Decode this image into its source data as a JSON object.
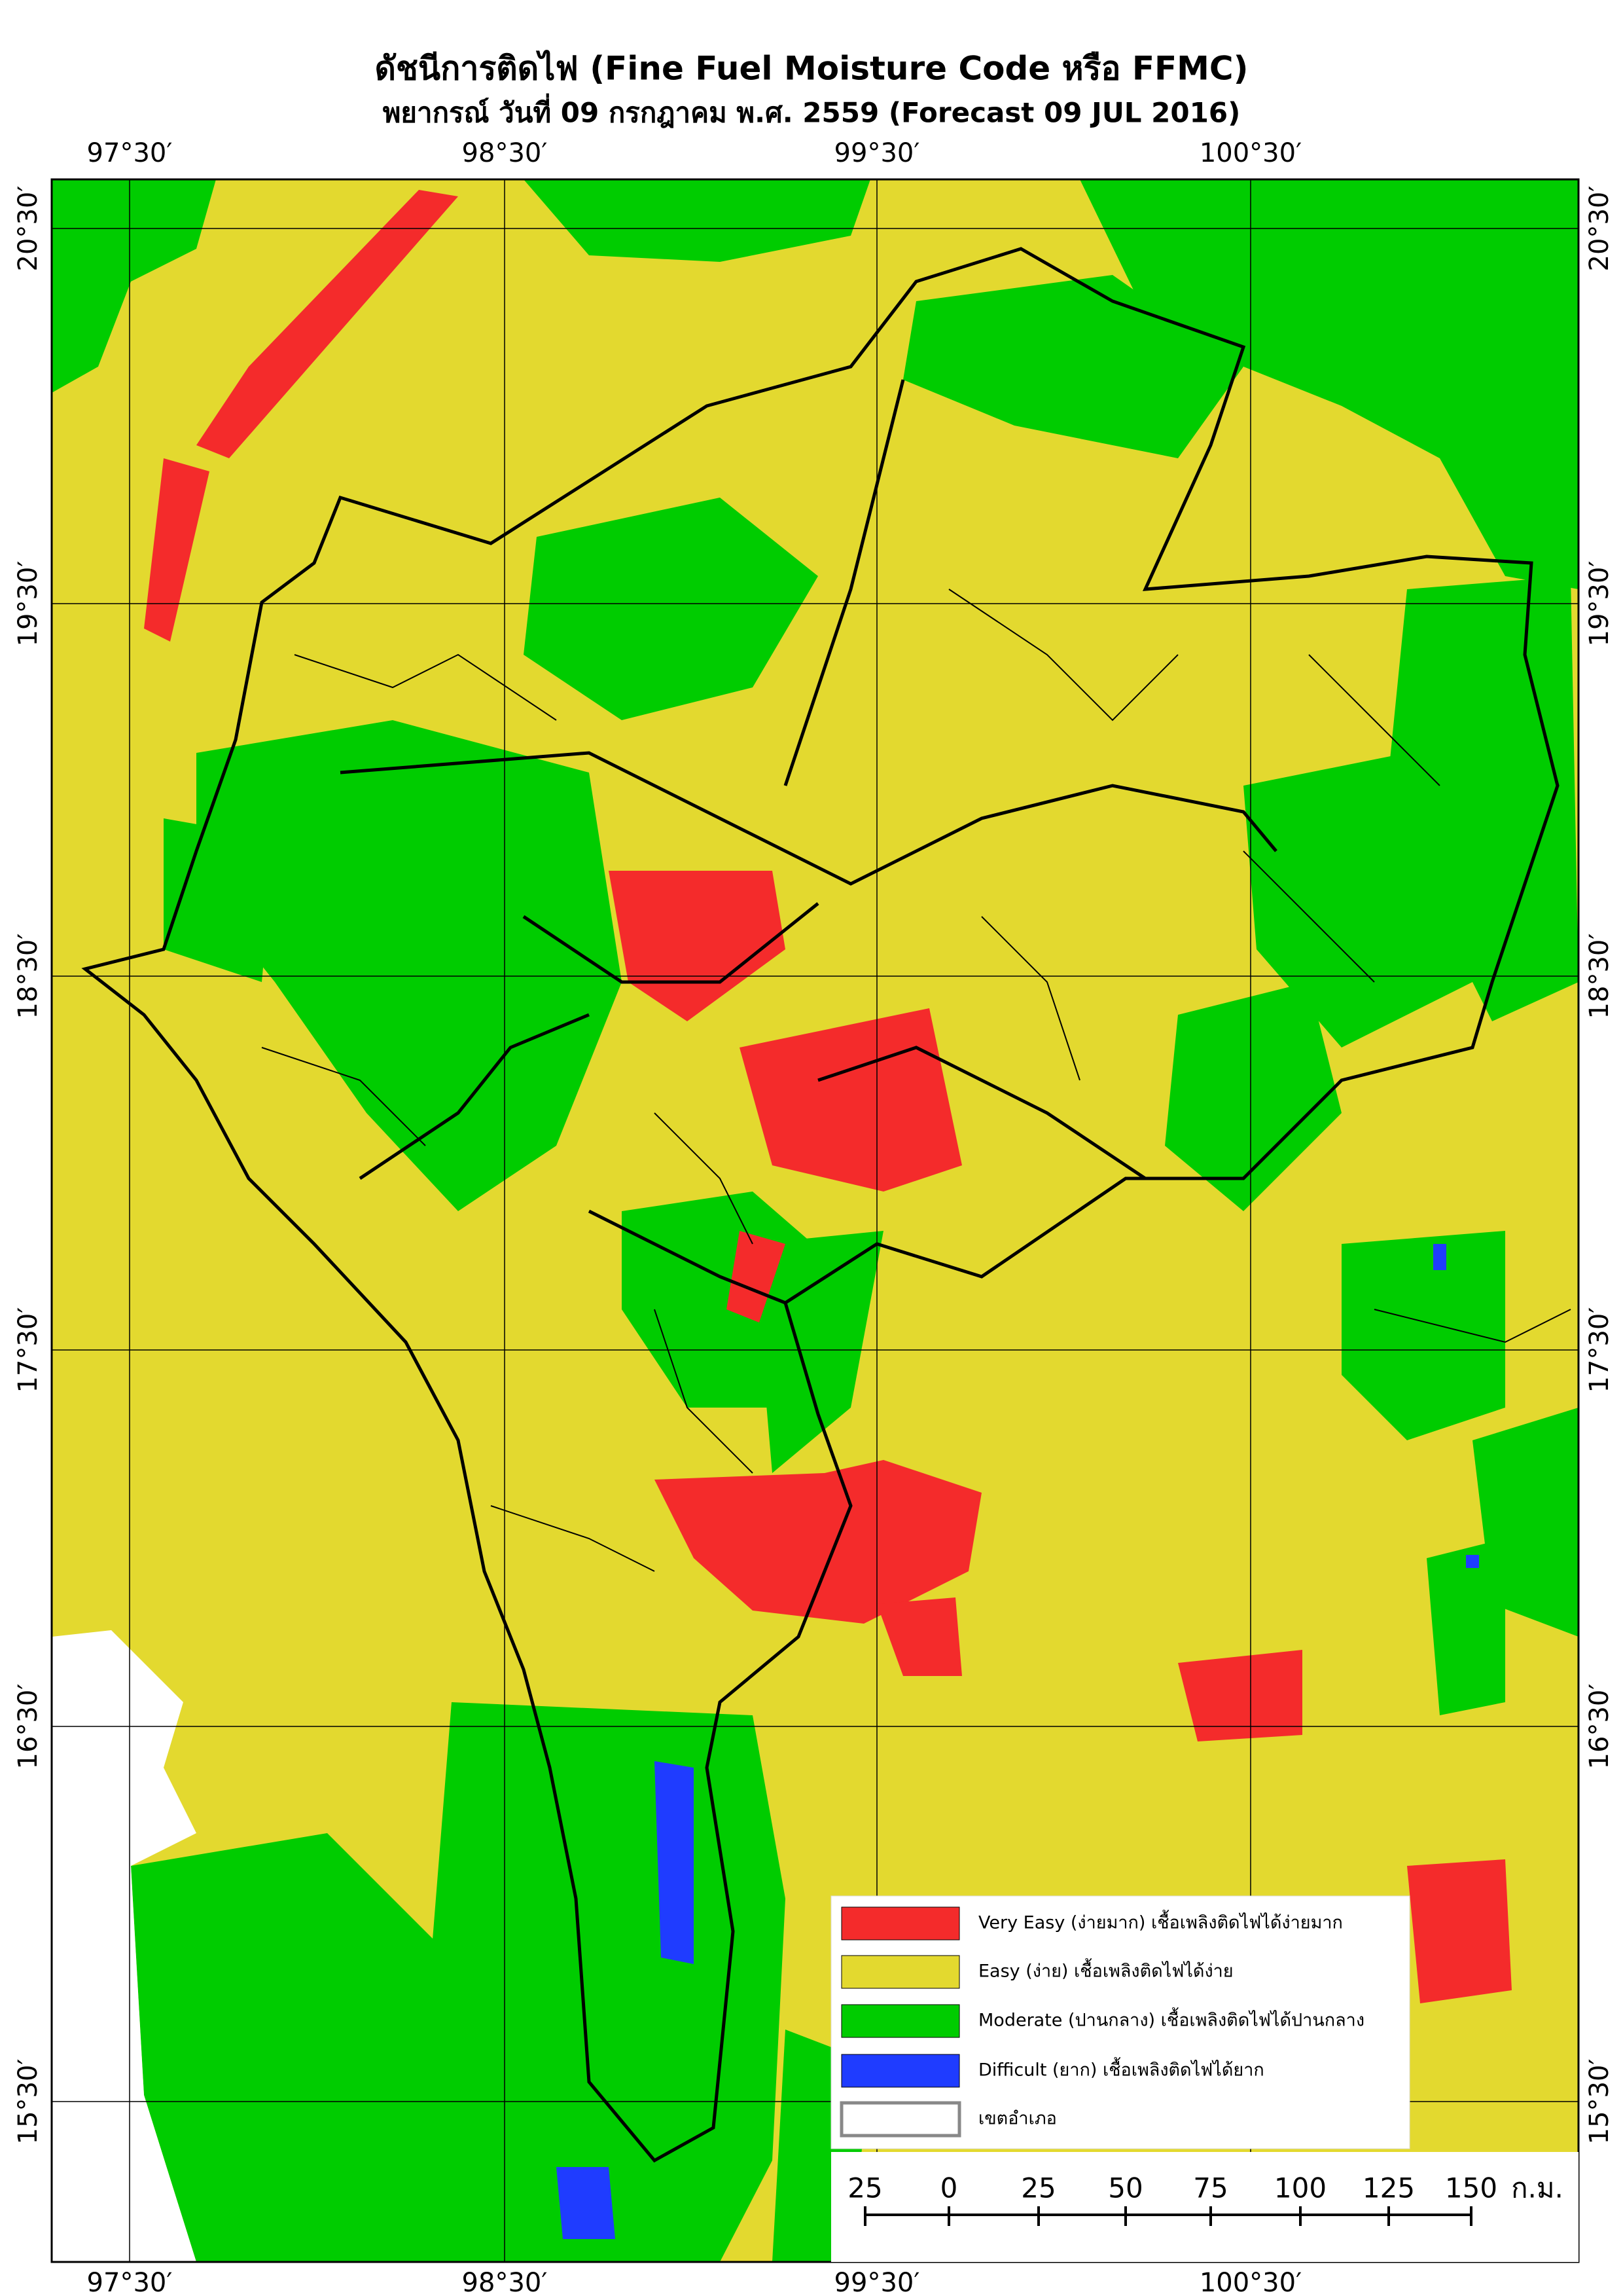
{
  "title": "ดัชนีการติดไฟ (Fine Fuel Moisture Code หรือ FFMC)",
  "subtitle": "พยากรณ์ วันที่ 09 กรกฎาคม พ.ศ. 2559 (Forecast 09 JUL 2016)",
  "longitude_labels": [
    "97°30′",
    "98°30′",
    "99°30′",
    "100°30′"
  ],
  "latitude_labels": [
    "20°30′",
    "19°30′",
    "18°30′",
    "17°30′",
    "16°30′",
    "15°30′"
  ],
  "legend": [
    {
      "label": "Very Easy (ง่ายมาก) เชื้อเพลิงติดไฟได้ง่ายมาก",
      "color": "#f42b2b"
    },
    {
      "label": "Easy (ง่าย) เชื้อเพลิงติดไฟได้ง่าย",
      "color": "#e3d92f"
    },
    {
      "label": "Moderate (ปานกลาง) เชื้อเพลิงติดไฟได้ปานกลาง",
      "color": "#00cc00"
    },
    {
      "label": "Difficult (ยาก) เชื้อเพลิงติดไฟได้ยาก",
      "color": "#1f3cff"
    },
    {
      "label": "เขตอำเภอ",
      "color": "#ffffff"
    }
  ],
  "scale_bar": {
    "labels": [
      "25",
      "0",
      "25",
      "50",
      "75",
      "100",
      "125",
      "150"
    ],
    "unit": "ก.ม."
  }
}
